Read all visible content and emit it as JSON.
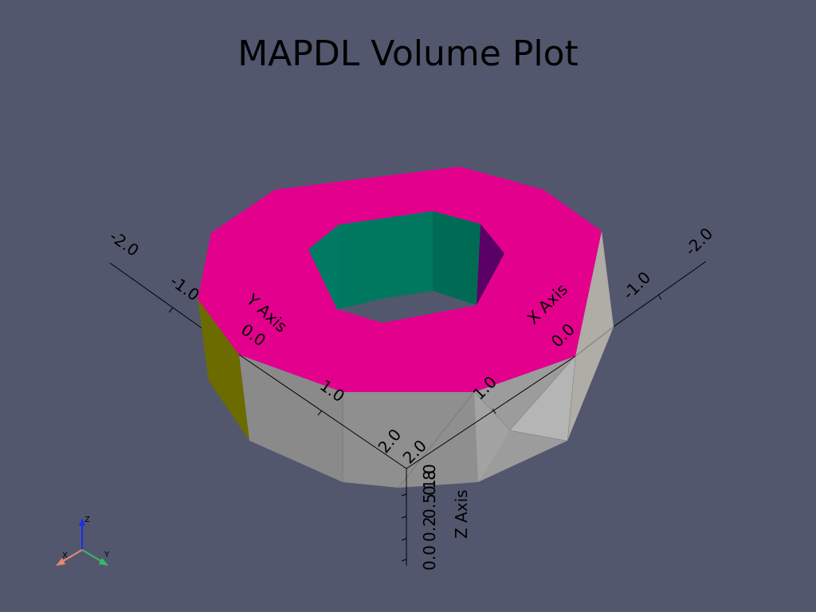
{
  "title": "MAPDL Volume Plot",
  "colors": {
    "background": "#52576e",
    "top_face": "#e3008d",
    "inner_wall": "#007a63",
    "inner_wall_dark": "#5a0066",
    "left_wall": "#6b6b00",
    "outer_wall": "#8f8f8f",
    "outer_wall_light": "#b0b0b0",
    "axis_line": "#000000",
    "triad_x": "#e8886a",
    "triad_y": "#3ab86a",
    "triad_z": "#1b2ee8"
  },
  "axes": {
    "x": {
      "title": "X Axis",
      "ticks": [
        "-2.0",
        "-1.0",
        "0.0",
        "1.0",
        "2.0"
      ]
    },
    "y": {
      "title": "Y Axis",
      "ticks": [
        "-2.0",
        "-1.0",
        "0.0",
        "1.0",
        "2.0"
      ]
    },
    "z": {
      "title": "Z Axis",
      "ticks": [
        "0.0",
        "0.2",
        "0.5",
        "0.8",
        "1.0"
      ]
    }
  },
  "orientation_triad": {
    "x": "X",
    "y": "Y",
    "z": "Z"
  }
}
